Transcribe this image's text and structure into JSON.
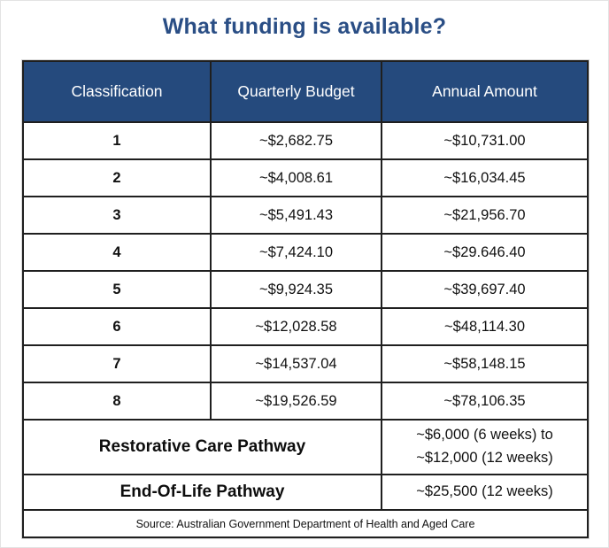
{
  "colors": {
    "header_bg": "#254a7d",
    "header_text": "#ffffff",
    "title_text": "#2a4e85",
    "grid_border": "#1f1f1f",
    "body_text": "#111111"
  },
  "chart_data": {
    "type": "table",
    "title": "What funding is available?",
    "columns": [
      "Classification",
      "Quarterly Budget",
      "Annual Amount"
    ],
    "rows": [
      [
        "1",
        "~$2,682.75",
        "~$10,731.00"
      ],
      [
        "2",
        "~$4,008.61",
        "~$16,034.45"
      ],
      [
        "3",
        "~$5,491.43",
        "~$21,956.70"
      ],
      [
        "4",
        "~$7,424.10",
        "~$29.646.40"
      ],
      [
        "5",
        "~$9,924.35",
        "~$39,697.40"
      ],
      [
        "6",
        "~$12,028.58",
        "~$48,114.30"
      ],
      [
        "7",
        "~$14,537.04",
        "~$58,148.15"
      ],
      [
        "8",
        "~$19,526.59",
        "~$78,106.35"
      ]
    ],
    "special_rows": [
      {
        "label": "Restorative Care Pathway",
        "value_lines": [
          "~$6,000 (6 weeks) to",
          "~$12,000 (12 weeks)"
        ]
      },
      {
        "label": "End-Of-Life Pathway",
        "value_lines": [
          "~$25,500 (12 weeks)"
        ]
      }
    ],
    "footer": "Source: Australian Government Department of Health and Aged Care",
    "layout": {
      "legend": "none",
      "grid": "on",
      "header_style": "navy-banner"
    }
  }
}
